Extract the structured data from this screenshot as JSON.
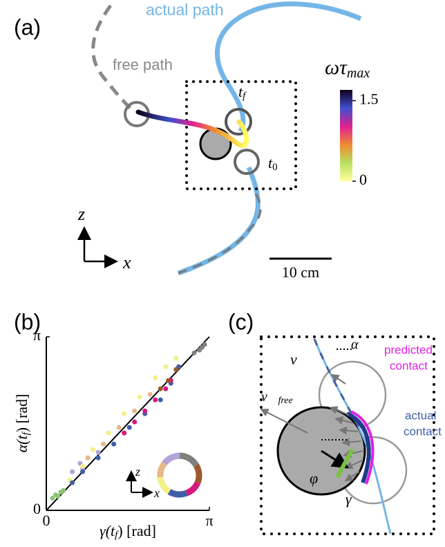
{
  "panel_a": {
    "label": "(a)",
    "actual_path": "actual path",
    "free_path": "free path",
    "t_final": {
      "base": "t",
      "sub": "f"
    },
    "t_zero": {
      "base": "t",
      "sub": "0"
    },
    "colorbar": {
      "symbol": "ωτ",
      "subscript": "max",
      "lim": [
        0,
        1.7
      ],
      "ticks": [
        0,
        1.5
      ]
    },
    "axis_z": "z",
    "axis_x": "x",
    "scale_bar": "10 cm"
  },
  "chart_data": {
    "type": "scatter",
    "panel_label": "(b)",
    "x_label": {
      "base": "γ(t",
      "sub": "f",
      "rest": ") [rad]"
    },
    "y_label": {
      "base": "α(t",
      "sub": "f",
      "rest": ") [rad]"
    },
    "xlim": [
      0,
      3.1416
    ],
    "ylim": [
      0,
      3.1416
    ],
    "xticks": [
      0,
      {
        "value": 3.1416,
        "label": "π"
      }
    ],
    "yticks": [
      0,
      {
        "value": 3.1416,
        "label": "π"
      }
    ],
    "inset_z": "z",
    "inset_x": "x",
    "series": [
      {
        "color": "#8cc474",
        "x": [
          0.12,
          0.18,
          0.22,
          0.28,
          0.33
        ],
        "values": [
          0.22,
          0.28,
          0.26,
          0.33,
          0.36
        ]
      },
      {
        "color": "#b3a3d6",
        "x": [
          0.5,
          0.65,
          0.8,
          1.0,
          0.7
        ],
        "values": [
          0.7,
          0.85,
          0.95,
          1.05,
          0.75
        ]
      },
      {
        "color": "#f3f08a",
        "x": [
          0.45,
          0.7,
          0.9,
          1.2,
          1.5,
          1.8,
          2.1,
          2.3,
          2.5
        ],
        "values": [
          0.55,
          0.8,
          1.1,
          1.4,
          1.75,
          2.05,
          2.4,
          2.6,
          2.75
        ]
      },
      {
        "color": "#e8b88a",
        "x": [
          0.8,
          1.1,
          1.4,
          1.7,
          2.0
        ],
        "values": [
          0.95,
          1.2,
          1.5,
          1.8,
          2.1
        ]
      },
      {
        "color": "#3f5fa8",
        "x": [
          0.5,
          0.7,
          1.0,
          1.3,
          1.6,
          1.9,
          2.2,
          2.4,
          2.55
        ],
        "values": [
          0.5,
          0.7,
          0.95,
          1.2,
          1.5,
          1.75,
          2.0,
          2.3,
          2.6
        ]
      },
      {
        "color": "#d6197f",
        "x": [
          1.5,
          1.7,
          1.9,
          2.1,
          2.3,
          2.4
        ],
        "values": [
          1.4,
          1.6,
          1.8,
          2.0,
          2.2,
          2.35
        ]
      },
      {
        "color": "#9b5a2b",
        "x": [
          2.2,
          2.35,
          2.5
        ],
        "values": [
          2.2,
          2.35,
          2.55
        ]
      },
      {
        "color": "#808080",
        "x": [
          2.85,
          2.95,
          3.0,
          3.05
        ],
        "values": [
          2.85,
          2.9,
          2.95,
          3.0
        ]
      }
    ]
  },
  "panel_c": {
    "label": "(c)",
    "alpha": "α",
    "velocity": "v⃗",
    "predicted_contact": [
      "predicted",
      "contact"
    ],
    "free_velocity": {
      "base": "v⃗",
      "sub": "free"
    },
    "actual_contact": [
      "actual",
      "contact"
    ],
    "phi": "φ",
    "gamma": "γ"
  }
}
